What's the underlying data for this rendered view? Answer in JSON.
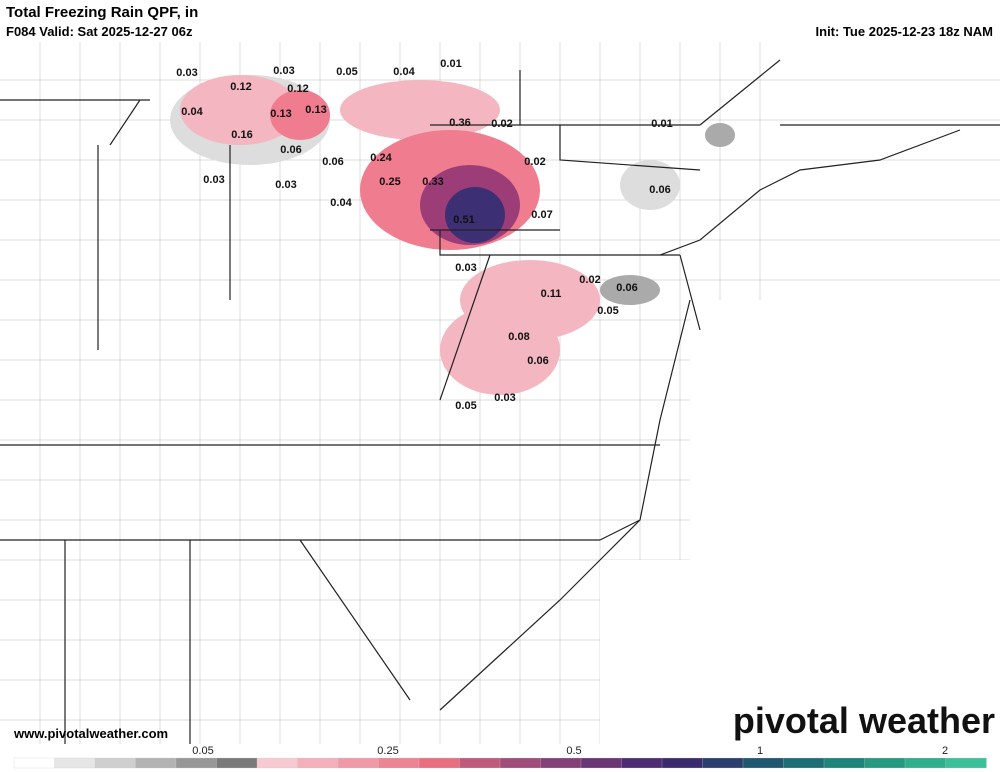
{
  "header": {
    "title": "Total Freezing Rain QPF, in",
    "valid": "F084 Valid: Sat 2025-12-27 06z",
    "init": "Init: Tue 2025-12-23 18z NAM"
  },
  "map_labels": [
    "0.03",
    "0.12",
    "0.03",
    "0.12",
    "0.05",
    "0.04",
    "0.01",
    "0.04",
    "0.13",
    "0.13",
    "0.16",
    "0.36",
    "0.02",
    "0.01",
    "0.06",
    "0.06",
    "0.24",
    "0.02",
    "0.03",
    "0.03",
    "0.25",
    "0.33",
    "0.06",
    "0.04",
    "0.51",
    "0.07",
    "0.03",
    "0.02",
    "0.06",
    "0.11",
    "0.05",
    "0.08",
    "0.06",
    "0.05",
    "0.03"
  ],
  "footer": {
    "website": "www.pivotalweather.com",
    "logo": "pivotal weather"
  },
  "colorbar_labels": [
    "0.05",
    "0.25",
    "0.5",
    "1",
    "2"
  ]
}
